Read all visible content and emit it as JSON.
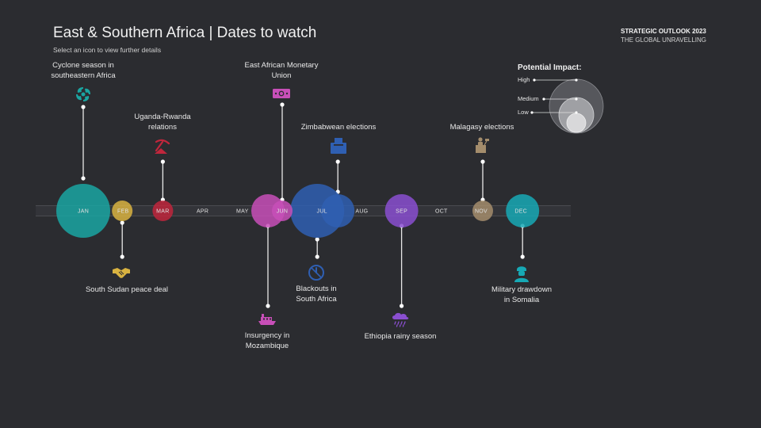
{
  "header": {
    "title": "East & Southern Africa | Dates to watch",
    "subtitle": "Select an icon to view further details",
    "brand_line1": "STRATEGIC OUTLOOK 2023",
    "brand_line2": "THE GLOBAL UNRAVELLING"
  },
  "months": [
    "JAN",
    "FEB",
    "MAR",
    "APR",
    "MAY",
    "JUN",
    "JUL",
    "AUG",
    "SEP",
    "OCT",
    "NOV",
    "DEC"
  ],
  "events": [
    {
      "id": "cyclone",
      "label": "Cyclone season in\nsoutheastern Africa",
      "month": "JAN",
      "impact": "high",
      "color": "#1aa6a2",
      "icon": "cyclone-icon"
    },
    {
      "id": "south-sudan",
      "label": "South Sudan peace deal",
      "month": "FEB",
      "impact": "low",
      "color": "#d9b341",
      "icon": "handshake-icon"
    },
    {
      "id": "uganda-rwanda",
      "label": "Uganda-Rwanda\nrelations",
      "month": "MAR",
      "impact": "low",
      "color": "#c0263c",
      "icon": "pickaxe-icon"
    },
    {
      "id": "eamu",
      "label": "East African Monetary\nUnion",
      "month": "JUN",
      "impact": "low",
      "color": "#c84fb8",
      "icon": "banknote-icon"
    },
    {
      "id": "mozambique",
      "label": "Insurgency in\nMozambique",
      "month": "JUN",
      "impact": "medium",
      "color": "#c84fb8",
      "icon": "ship-icon"
    },
    {
      "id": "zimbabwe",
      "label": "Zimbabwean elections",
      "month": "JUL",
      "impact": "medium",
      "color": "#2f5fb2",
      "icon": "ballot-box-icon"
    },
    {
      "id": "blackouts",
      "label": "Blackouts in\nSouth Africa",
      "month": "JUL",
      "impact": "high",
      "color": "#2f5fb2",
      "icon": "power-off-icon"
    },
    {
      "id": "ethiopia",
      "label": "Ethiopia rainy season",
      "month": "SEP",
      "impact": "medium",
      "color": "#8a4fd0",
      "icon": "rain-cloud-icon"
    },
    {
      "id": "malagasy",
      "label": "Malagasy elections",
      "month": "NOV",
      "impact": "low",
      "color": "#a48d6c",
      "icon": "speaker-podium-icon"
    },
    {
      "id": "somalia",
      "label": "Military drawdown\nin Somalia",
      "month": "DEC",
      "impact": "medium",
      "color": "#17a9b5",
      "icon": "soldier-icon"
    }
  ],
  "legend": {
    "title": "Potential Impact:",
    "high": "High",
    "medium": "Medium",
    "low": "Low"
  }
}
